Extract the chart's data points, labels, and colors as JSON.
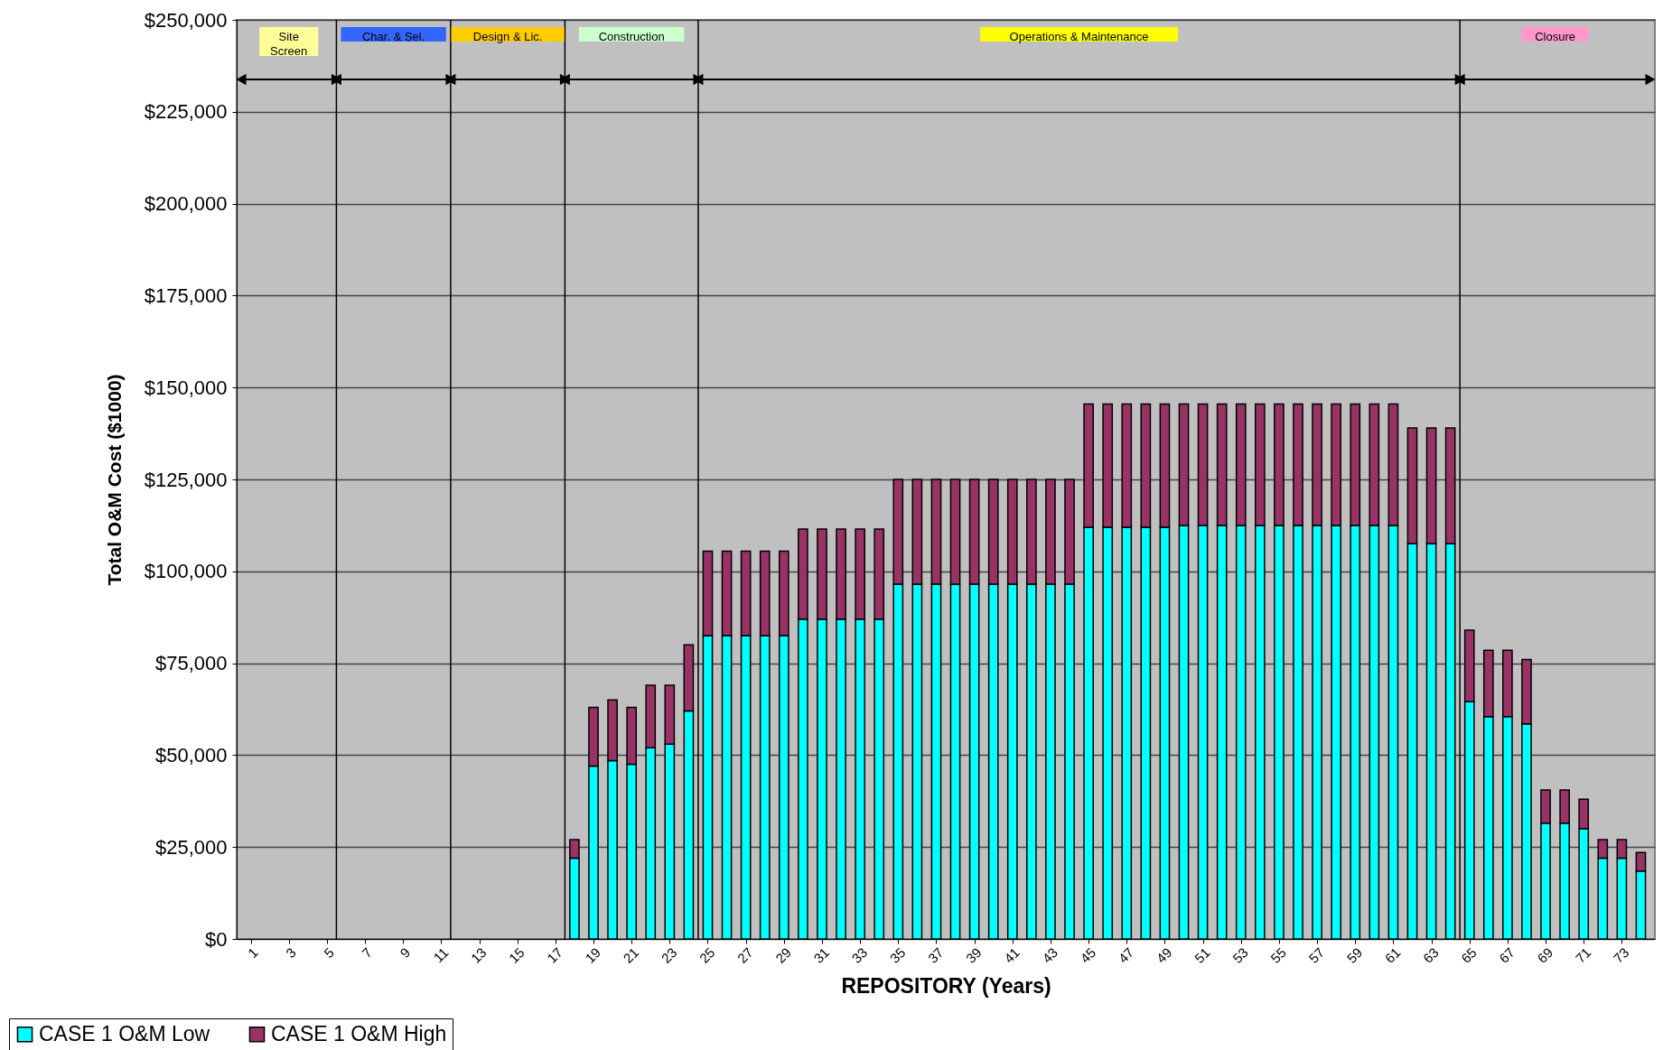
{
  "chart_data": {
    "type": "bar",
    "stacked": true,
    "xlabel": "REPOSITORY (Years)",
    "ylabel": "Total O&M Cost ($1000)",
    "x": [
      18,
      19,
      20,
      21,
      22,
      23,
      24,
      25,
      26,
      27,
      28,
      29,
      30,
      31,
      32,
      33,
      34,
      35,
      36,
      37,
      38,
      39,
      40,
      41,
      42,
      43,
      44,
      45,
      46,
      47,
      48,
      49,
      50,
      51,
      52,
      53,
      54,
      55,
      56,
      57,
      58,
      59,
      60,
      61,
      62,
      63,
      64,
      65,
      66,
      67,
      68,
      69,
      70,
      71,
      72,
      73,
      74
    ],
    "series": [
      {
        "name": "CASE 1 O&M Low",
        "color": "#00ffff",
        "values": [
          22000,
          47000,
          48500,
          47500,
          52000,
          53000,
          62000,
          82500,
          82500,
          82500,
          82500,
          82500,
          87000,
          87000,
          87000,
          87000,
          87000,
          96500,
          96500,
          96500,
          96500,
          96500,
          96500,
          96500,
          96500,
          96500,
          96500,
          112000,
          112000,
          112000,
          112000,
          112000,
          112500,
          112500,
          112500,
          112500,
          112500,
          112500,
          112500,
          112500,
          112500,
          112500,
          112500,
          112500,
          107500,
          107500,
          107500,
          64500,
          60500,
          60500,
          58500,
          31500,
          31500,
          30000,
          22000,
          22000,
          18500
        ]
      },
      {
        "name": "CASE 1 O&M High",
        "color": "#993366",
        "values": [
          5000,
          16000,
          16500,
          15500,
          17000,
          16000,
          18000,
          23000,
          23000,
          23000,
          23000,
          23000,
          24500,
          24500,
          24500,
          24500,
          24500,
          28500,
          28500,
          28500,
          28500,
          28500,
          28500,
          28500,
          28500,
          28500,
          28500,
          33500,
          33500,
          33500,
          33500,
          33500,
          33000,
          33000,
          33000,
          33000,
          33000,
          33000,
          33000,
          33000,
          33000,
          33000,
          33000,
          33000,
          31500,
          31500,
          31500,
          19500,
          18000,
          18000,
          17500,
          9000,
          9000,
          8000,
          5000,
          5000,
          5000
        ]
      }
    ],
    "xlim": [
      0.5,
      74.5
    ],
    "xticks": [
      1,
      3,
      5,
      7,
      9,
      11,
      13,
      15,
      17,
      19,
      21,
      23,
      25,
      27,
      29,
      31,
      33,
      35,
      37,
      39,
      41,
      43,
      45,
      47,
      49,
      51,
      53,
      55,
      57,
      59,
      61,
      63,
      65,
      67,
      69,
      71,
      73
    ],
    "ylim": [
      0,
      250000
    ],
    "yticks": [
      {
        "value": 0,
        "label": "$0"
      },
      {
        "value": 25000,
        "label": "$25,000"
      },
      {
        "value": 50000,
        "label": "$50,000"
      },
      {
        "value": 75000,
        "label": "$75,000"
      },
      {
        "value": 100000,
        "label": "$100,000"
      },
      {
        "value": 125000,
        "label": "$125,000"
      },
      {
        "value": 150000,
        "label": "$150,000"
      },
      {
        "value": 175000,
        "label": "$175,000"
      },
      {
        "value": 200000,
        "label": "$200,000"
      },
      {
        "value": 225000,
        "label": "$225,000"
      },
      {
        "value": 250000,
        "label": "$250,000"
      }
    ],
    "grid": "y",
    "legend": "bottom left",
    "ref_lines": [
      {
        "axis": "x",
        "value": 5.5
      },
      {
        "axis": "x",
        "value": 11.5
      },
      {
        "axis": "x",
        "value": 17.5
      },
      {
        "axis": "x",
        "value": 24.5
      },
      {
        "axis": "x",
        "value": 64.5
      }
    ],
    "annotations": [
      "Site Screen",
      "Char. & Sel.",
      "Design & Lic.",
      "Construction",
      "Operations & Maintenance",
      "Closure"
    ]
  }
}
